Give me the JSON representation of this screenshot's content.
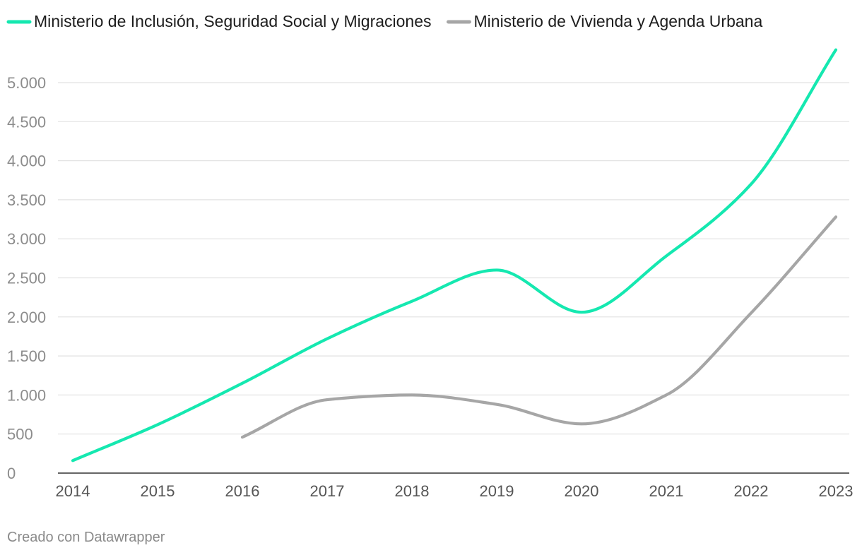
{
  "chart_data": {
    "type": "line",
    "title": "",
    "xlabel": "",
    "ylabel": "",
    "categories": [
      "2014",
      "2015",
      "2016",
      "2017",
      "2018",
      "2019",
      "2020",
      "2021",
      "2022",
      "2023"
    ],
    "ylim": [
      0,
      5000
    ],
    "yticks": [
      0,
      500,
      1000,
      1500,
      2000,
      2500,
      3000,
      3500,
      4000,
      4500,
      5000
    ],
    "ytick_labels": [
      "0",
      "500",
      "1.000",
      "1.500",
      "2.000",
      "2.500",
      "3.000",
      "3.500",
      "4.000",
      "4.500",
      "5.000"
    ],
    "grid": true,
    "legend_position": "top-left",
    "series": [
      {
        "name": "Ministerio de Inclusión, Seguridad Social y Migraciones",
        "color": "#15e8b0",
        "values": [
          160,
          620,
          1150,
          1720,
          2200,
          2600,
          2060,
          2780,
          3700,
          5420
        ]
      },
      {
        "name": "Ministerio de Vivienda y Agenda Urbana",
        "color": "#a6a6a6",
        "values": [
          null,
          null,
          460,
          940,
          1000,
          880,
          630,
          1000,
          2050,
          3280
        ]
      }
    ]
  },
  "footer": {
    "credit": "Creado con Datawrapper"
  }
}
